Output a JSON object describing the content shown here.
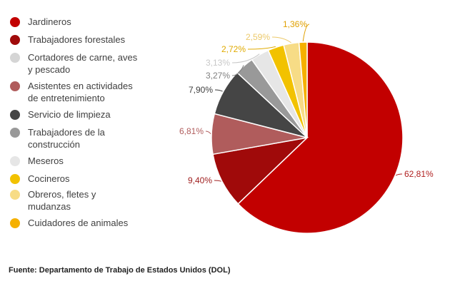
{
  "chart_data": {
    "type": "pie",
    "legend_position": "left",
    "title": "",
    "slices": [
      {
        "label": "Jardineros",
        "value": 62.81,
        "display": "62,81%",
        "color": "#c20000",
        "label_color": "#b02020"
      },
      {
        "label": "Trabajadores forestales",
        "value": 9.4,
        "display": "9,40%",
        "color": "#a00a0a",
        "label_color": "#a02020"
      },
      {
        "label": "Cortadores de carne, aves y pescado",
        "value": 0,
        "display": "",
        "color": "#d5d5d5",
        "label_color": "#bbbbbb"
      },
      {
        "label": "Asistentes en actividades de entretenimiento",
        "value": 6.81,
        "display": "6,81%",
        "color": "#b05c5c",
        "label_color": "#b05c5c"
      },
      {
        "label": "Servicio de limpieza",
        "value": 7.9,
        "display": "7,90%",
        "color": "#454545",
        "label_color": "#404040"
      },
      {
        "label": "Trabajadores de la construcción",
        "value": 3.27,
        "display": "3,27%",
        "color": "#999999",
        "label_color": "#808080"
      },
      {
        "label": "Meseros",
        "value": 3.13,
        "display": "3,13%",
        "color": "#e6e6e6",
        "label_color": "#c8c8c8"
      },
      {
        "label": "Cocineros",
        "value": 2.72,
        "display": "2,72%",
        "color": "#f2c200",
        "label_color": "#e0aa00"
      },
      {
        "label": "Obreros, fletes y mudanzas",
        "value": 2.59,
        "display": "2,59%",
        "color": "#f7dc86",
        "label_color": "#ecc96a"
      },
      {
        "label": "Cuidadores de animales",
        "value": 1.36,
        "display": "1,36%",
        "color": "#f5b000",
        "label_color": "#e0a000"
      }
    ]
  },
  "legend": [
    {
      "lines": [
        "Jardineros"
      ],
      "color": "#c20000"
    },
    {
      "lines": [
        "Trabajadores forestales"
      ],
      "color": "#a00a0a"
    },
    {
      "lines": [
        "Cortadores de carne, aves",
        "y pescado"
      ],
      "color": "#d5d5d5"
    },
    {
      "lines": [
        "Asistentes en actividades",
        "de entretenimiento"
      ],
      "color": "#b05c5c"
    },
    {
      "lines": [
        "Servicio de limpieza"
      ],
      "color": "#454545"
    },
    {
      "lines": [
        "Trabajadores de la",
        "construcción"
      ],
      "color": "#999999"
    },
    {
      "lines": [
        "Meseros"
      ],
      "color": "#e6e6e6"
    },
    {
      "lines": [
        "Cocineros"
      ],
      "color": "#f2c200"
    },
    {
      "lines": [
        "Obreros, fletes y",
        "mudanzas"
      ],
      "color": "#f7dc86"
    },
    {
      "lines": [
        "Cuidadores de animales"
      ],
      "color": "#f5b000"
    }
  ],
  "source": "Fuente: Departamento de Trabajo de Estados Unidos (DOL)"
}
